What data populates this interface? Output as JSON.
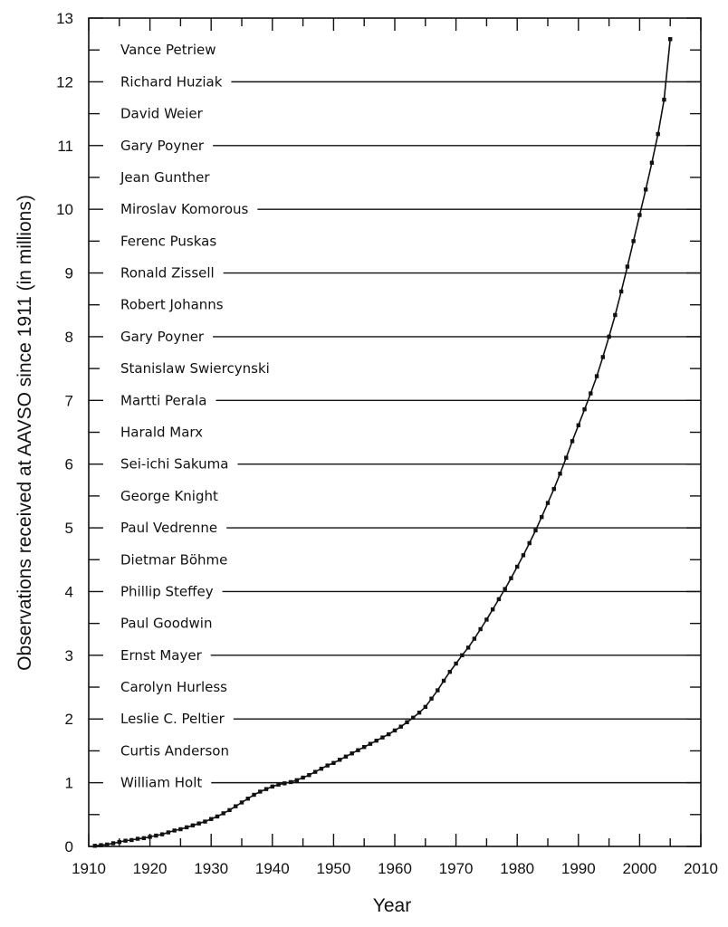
{
  "chart_data": {
    "type": "line",
    "title": "",
    "xlabel": "Year",
    "ylabel": "Observations received at AAVSO since 1911 (in millions)",
    "xlim": [
      1910,
      2010
    ],
    "ylim": [
      0,
      13
    ],
    "x_ticks": [
      "1910",
      "1920",
      "1930",
      "1940",
      "1950",
      "1960",
      "1970",
      "1980",
      "1990",
      "2000",
      "2010"
    ],
    "y_ticks": [
      "0",
      "1",
      "2",
      "3",
      "4",
      "5",
      "6",
      "7",
      "8",
      "9",
      "10",
      "11",
      "12",
      "13"
    ],
    "grid": false,
    "series": [
      {
        "x": [
          1911,
          1912,
          1913,
          1914,
          1915,
          1916,
          1917,
          1918,
          1919,
          1920,
          1921,
          1922,
          1923,
          1924,
          1925,
          1926,
          1927,
          1928,
          1929,
          1930,
          1931,
          1932,
          1933,
          1934,
          1935,
          1936,
          1937,
          1938,
          1939,
          1940,
          1941,
          1942,
          1943,
          1944,
          1945,
          1946,
          1947,
          1948,
          1949,
          1950,
          1951,
          1952,
          1953,
          1954,
          1955,
          1956,
          1957,
          1958,
          1959,
          1960,
          1961,
          1962,
          1963,
          1964,
          1965,
          1966,
          1967,
          1968,
          1969,
          1970,
          1971,
          1972,
          1973,
          1974,
          1975,
          1976,
          1977,
          1978,
          1979,
          1980,
          1981,
          1982,
          1983,
          1984,
          1985,
          1986,
          1987,
          1988,
          1989,
          1990,
          1991,
          1992,
          1993,
          1994,
          1995,
          1996,
          1997,
          1998,
          1999,
          2000,
          2001,
          2002,
          2003,
          2004,
          2005
        ],
        "y": [
          0.01,
          0.02,
          0.03,
          0.05,
          0.07,
          0.09,
          0.1,
          0.12,
          0.13,
          0.15,
          0.17,
          0.19,
          0.22,
          0.25,
          0.27,
          0.3,
          0.33,
          0.36,
          0.39,
          0.43,
          0.47,
          0.52,
          0.57,
          0.63,
          0.69,
          0.75,
          0.81,
          0.86,
          0.9,
          0.94,
          0.97,
          0.99,
          1.01,
          1.04,
          1.08,
          1.12,
          1.17,
          1.22,
          1.27,
          1.31,
          1.36,
          1.41,
          1.46,
          1.51,
          1.56,
          1.61,
          1.66,
          1.71,
          1.76,
          1.82,
          1.88,
          1.95,
          2.02,
          2.1,
          2.19,
          2.32,
          2.45,
          2.6,
          2.74,
          2.87,
          3.0,
          3.12,
          3.26,
          3.41,
          3.56,
          3.72,
          3.88,
          4.04,
          4.21,
          4.39,
          4.57,
          4.76,
          4.96,
          5.17,
          5.39,
          5.61,
          5.85,
          6.1,
          6.36,
          6.61,
          6.86,
          7.11,
          7.38,
          7.68,
          8.0,
          8.34,
          8.71,
          9.1,
          9.5,
          9.91,
          10.31,
          10.73,
          11.18,
          11.72,
          12.67
        ]
      }
    ],
    "observer_labels": [
      {
        "name": "William Holt",
        "level": 1
      },
      {
        "name": "Curtis Anderson",
        "level": 1.5
      },
      {
        "name": "Leslie C. Peltier",
        "level": 2
      },
      {
        "name": "Carolyn Hurless",
        "level": 2.5
      },
      {
        "name": "Ernst Mayer",
        "level": 3
      },
      {
        "name": "Paul Goodwin",
        "level": 3.5
      },
      {
        "name": "Phillip Steffey",
        "level": 4
      },
      {
        "name": "Dietmar Böhme",
        "level": 4.5
      },
      {
        "name": "Paul Vedrenne",
        "level": 5
      },
      {
        "name": "George Knight",
        "level": 5.5
      },
      {
        "name": "Sei-ichi Sakuma",
        "level": 6
      },
      {
        "name": "Harald Marx",
        "level": 6.5
      },
      {
        "name": "Martti Perala",
        "level": 7
      },
      {
        "name": "Stanislaw Swiercynski",
        "level": 7.5
      },
      {
        "name": "Gary Poyner",
        "level": 8
      },
      {
        "name": "Robert Johanns",
        "level": 8.5
      },
      {
        "name": "Ronald Zissell",
        "level": 9
      },
      {
        "name": "Ferenc Puskas",
        "level": 9.5
      },
      {
        "name": "Miroslav Komorous",
        "level": 10
      },
      {
        "name": "Jean Gunther",
        "level": 10.5
      },
      {
        "name": "Gary Poyner",
        "level": 11
      },
      {
        "name": "David Weier",
        "level": 11.5
      },
      {
        "name": "Richard Huziak",
        "level": 12
      },
      {
        "name": "Vance Petriew",
        "level": 12.5
      }
    ]
  }
}
